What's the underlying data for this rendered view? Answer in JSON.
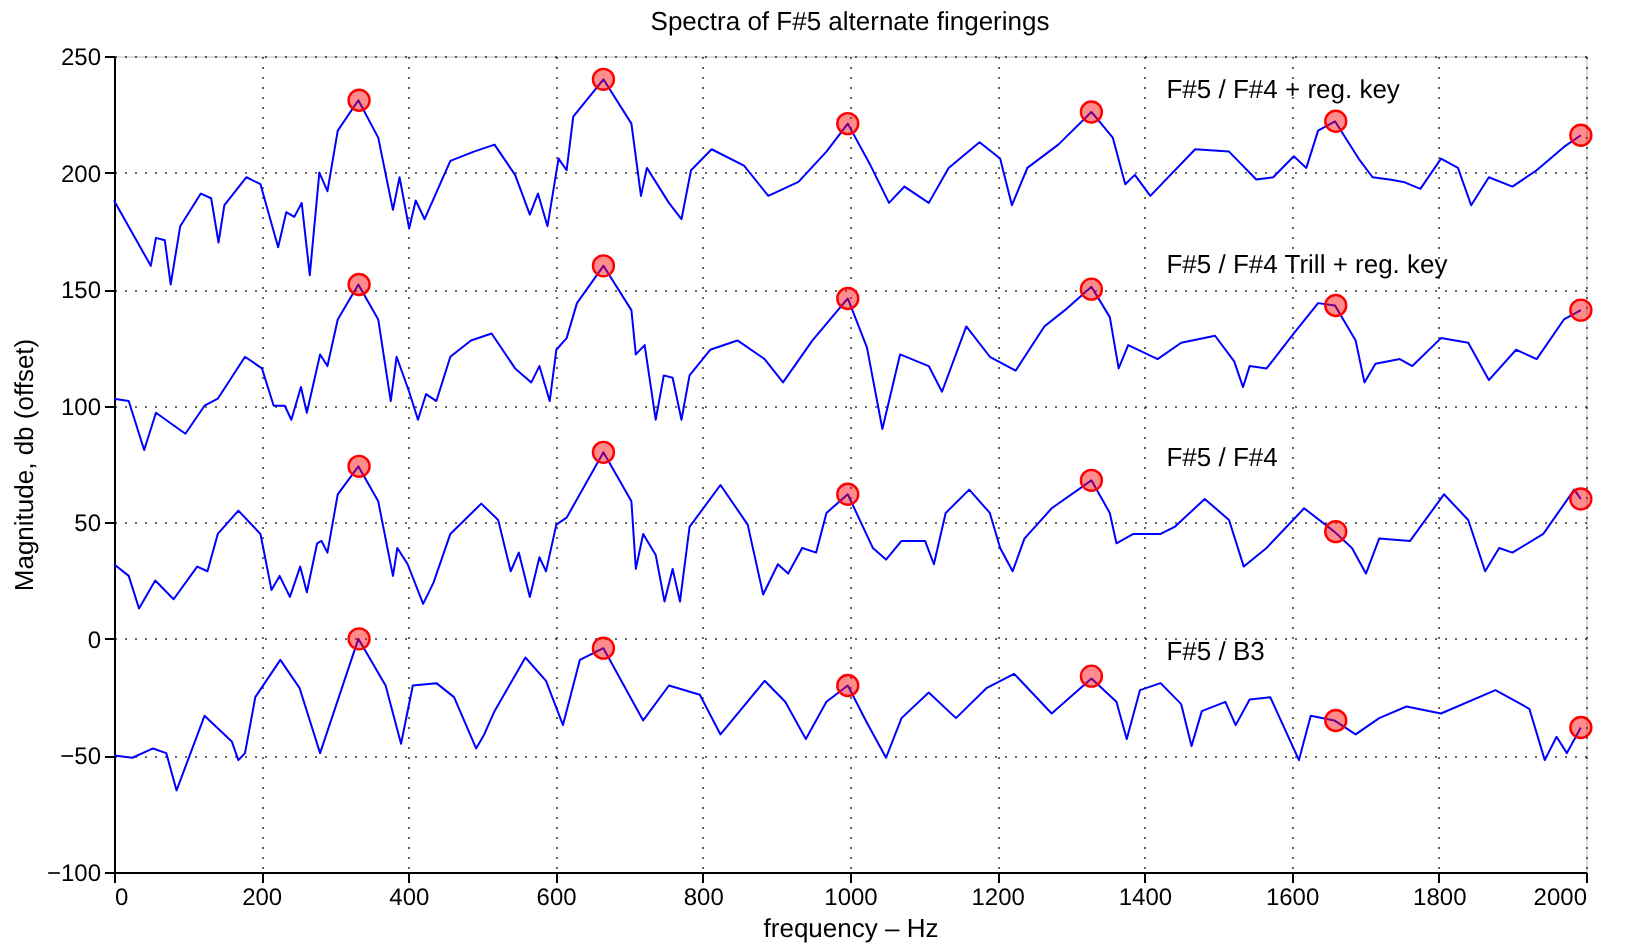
{
  "chart_data": {
    "type": "line",
    "title": "Spectra of F#5 alternate fingerings",
    "xlabel": "frequency – Hz",
    "ylabel": "Magnitude, db (offset)",
    "xlim": [
      0,
      2000
    ],
    "xticks": [
      0,
      200,
      400,
      600,
      800,
      1000,
      1200,
      1400,
      1600,
      1800,
      2000
    ],
    "ylim": [
      -100,
      250
    ],
    "yticks": [
      -100,
      -50,
      0,
      50,
      100,
      150,
      200,
      250
    ],
    "grid": true,
    "line_style": "solid",
    "marker": "none",
    "series": [
      {
        "name": "F#5 / F#4 + reg. key",
        "color": "#0000ff",
        "x": [
          0,
          50,
          57,
          69,
          77,
          90,
          118,
          132,
          142,
          150,
          180,
          199,
          223,
          234,
          245,
          255,
          266,
          279,
          290,
          304,
          332,
          359,
          379,
          388,
          401,
          410,
          422,
          457,
          489,
          517,
          545,
          565,
          576,
          589,
          604,
          615,
          624,
          665,
          703,
          716,
          724,
          754,
          771,
          784,
          812,
          856,
          889,
          930,
          968,
          997,
          1028,
          1053,
          1074,
          1107,
          1134,
          1176,
          1204,
          1220,
          1241,
          1283,
          1328,
          1357,
          1374,
          1387,
          1408,
          1469,
          1515,
          1552,
          1575,
          1603,
          1620,
          1636,
          1659,
          1691,
          1710,
          1733,
          1752,
          1775,
          1803,
          1826,
          1844,
          1868,
          1900,
          1933,
          1970,
          1993
        ],
        "values": [
          188,
          160,
          172,
          171,
          152,
          177,
          191,
          189,
          170,
          186,
          198,
          195,
          168,
          183,
          181,
          187,
          156,
          200,
          192,
          218,
          231,
          215,
          184,
          198,
          176,
          188,
          180,
          205,
          209,
          212,
          199,
          182,
          191,
          177,
          206,
          201,
          224,
          240,
          221,
          190,
          202,
          187,
          180,
          201,
          210,
          203,
          190,
          196,
          209,
          221,
          203,
          187,
          194,
          187,
          202,
          213,
          206,
          186,
          202,
          212,
          226,
          215,
          195,
          199,
          190,
          210,
          209,
          197,
          198,
          207,
          202,
          218,
          222,
          206,
          198,
          197,
          196,
          193,
          206,
          202,
          186,
          198,
          194,
          201,
          211,
          216
        ]
      },
      {
        "name": "F#5 / F#4 Trill + reg. key",
        "color": "#0000ff",
        "x": [
          0,
          20,
          41,
          57,
          97,
          123,
          141,
          178,
          201,
          217,
          232,
          241,
          254,
          262,
          280,
          290,
          304,
          332,
          359,
          376,
          384,
          401,
          413,
          424,
          438,
          457,
          485,
          513,
          545,
          567,
          578,
          592,
          601,
          615,
          629,
          665,
          703,
          709,
          721,
          736,
          747,
          759,
          771,
          782,
          810,
          847,
          884,
          909,
          949,
          997,
          1023,
          1044,
          1068,
          1107,
          1125,
          1158,
          1190,
          1225,
          1264,
          1292,
          1328,
          1353,
          1365,
          1378,
          1418,
          1450,
          1496,
          1522,
          1534,
          1543,
          1566,
          1603,
          1636,
          1659,
          1687,
          1699,
          1714,
          1747,
          1764,
          1803,
          1840,
          1868,
          1905,
          1933,
          1970,
          1993
        ],
        "values": [
          103,
          102,
          81,
          97,
          88,
          100,
          103,
          121,
          116,
          100,
          100,
          94,
          108,
          97,
          122,
          117,
          137,
          152,
          137,
          102,
          121,
          106,
          94,
          105,
          102,
          121,
          128,
          131,
          116,
          110,
          117,
          102,
          124,
          129,
          144,
          160,
          141,
          122,
          126,
          94,
          113,
          112,
          94,
          113,
          124,
          128,
          120,
          110,
          128,
          146,
          125,
          90,
          122,
          117,
          106,
          134,
          121,
          115,
          134,
          141,
          151,
          138,
          116,
          126,
          120,
          127,
          130,
          119,
          108,
          117,
          116,
          131,
          144,
          143,
          128,
          110,
          118,
          120,
          117,
          129,
          127,
          111,
          124,
          120,
          137,
          141
        ]
      },
      {
        "name": "F#5 / F#4",
        "color": "#0000ff",
        "x": [
          0,
          20,
          34,
          56,
          81,
          113,
          127,
          141,
          169,
          199,
          214,
          225,
          239,
          253,
          262,
          276,
          282,
          290,
          304,
          332,
          359,
          379,
          385,
          399,
          420,
          434,
          457,
          499,
          522,
          539,
          550,
          565,
          578,
          587,
          601,
          615,
          665,
          703,
          709,
          719,
          736,
          748,
          759,
          769,
          782,
          824,
          861,
          882,
          902,
          916,
          935,
          954,
          968,
          997,
          1031,
          1049,
          1070,
          1102,
          1114,
          1130,
          1162,
          1190,
          1204,
          1221,
          1237,
          1274,
          1328,
          1353,
          1362,
          1385,
          1422,
          1441,
          1482,
          1515,
          1535,
          1566,
          1617,
          1658,
          1682,
          1701,
          1719,
          1761,
          1807,
          1840,
          1863,
          1882,
          1900,
          1942,
          1984,
          1993
        ],
        "values": [
          32,
          27,
          13,
          25,
          17,
          31,
          29,
          45,
          55,
          45,
          21,
          27,
          18,
          31,
          20,
          41,
          42,
          37,
          62,
          74,
          59,
          27,
          39,
          32,
          15,
          24,
          45,
          58,
          51,
          29,
          37,
          18,
          35,
          29,
          49,
          52,
          80,
          59,
          30,
          45,
          36,
          16,
          30,
          16,
          48,
          66,
          49,
          19,
          32,
          28,
          39,
          37,
          54,
          62,
          39,
          34,
          42,
          42,
          32,
          54,
          64,
          54,
          39,
          29,
          43,
          56,
          68,
          54,
          41,
          45,
          45,
          48,
          60,
          51,
          31,
          39,
          56,
          46,
          39,
          28,
          43,
          42,
          62,
          51,
          29,
          39,
          37,
          45,
          64,
          60
        ]
      },
      {
        "name": "F#5 / B3",
        "color": "#0000ff",
        "x": [
          0,
          25,
          53,
          71,
          85,
          123,
          160,
          169,
          178,
          192,
          226,
          252,
          280,
          332,
          369,
          390,
          406,
          438,
          462,
          492,
          503,
          517,
          559,
          587,
          610,
          633,
          665,
          698,
          719,
          754,
          796,
          824,
          884,
          912,
          940,
          968,
          997,
          1023,
          1049,
          1070,
          1107,
          1144,
          1186,
          1223,
          1274,
          1328,
          1362,
          1376,
          1394,
          1422,
          1450,
          1464,
          1478,
          1510,
          1524,
          1543,
          1571,
          1610,
          1626,
          1658,
          1687,
          1719,
          1756,
          1803,
          1877,
          1923,
          1944,
          1960,
          1974,
          1993
        ],
        "values": [
          -50,
          -51,
          -47,
          -49,
          -65,
          -33,
          -44,
          -52,
          -49,
          -25,
          -9,
          -21,
          -49,
          0,
          -20,
          -45,
          -20,
          -19,
          -25,
          -47,
          -41,
          -31,
          -8,
          -18,
          -37,
          -9,
          -4,
          -23,
          -35,
          -20,
          -24,
          -41,
          -18,
          -27,
          -43,
          -27,
          -20,
          -36,
          -51,
          -34,
          -23,
          -34,
          -21,
          -15,
          -32,
          -17,
          -27,
          -43,
          -22,
          -19,
          -28,
          -46,
          -31,
          -27,
          -37,
          -26,
          -25,
          -52,
          -33,
          -35,
          -41,
          -34,
          -29,
          -32,
          -22,
          -30,
          -52,
          -42,
          -49,
          -38
        ]
      },
      {
        "type": "scatter",
        "color": "#ff0000",
        "marker": "circle",
        "x": [
          333,
          665,
          997,
          1328,
          1660,
          1993,
          333,
          665,
          997,
          1328,
          1660,
          1993,
          333,
          665,
          997,
          1328,
          1660,
          1993,
          333,
          665,
          997,
          1328,
          1660,
          1993
        ],
        "values": [
          231,
          240,
          221,
          226,
          222,
          216,
          152,
          160,
          146,
          150,
          143,
          141,
          74,
          80,
          62,
          68,
          46,
          60,
          0,
          -4,
          -20,
          -16,
          -35,
          -38
        ]
      }
    ]
  }
}
